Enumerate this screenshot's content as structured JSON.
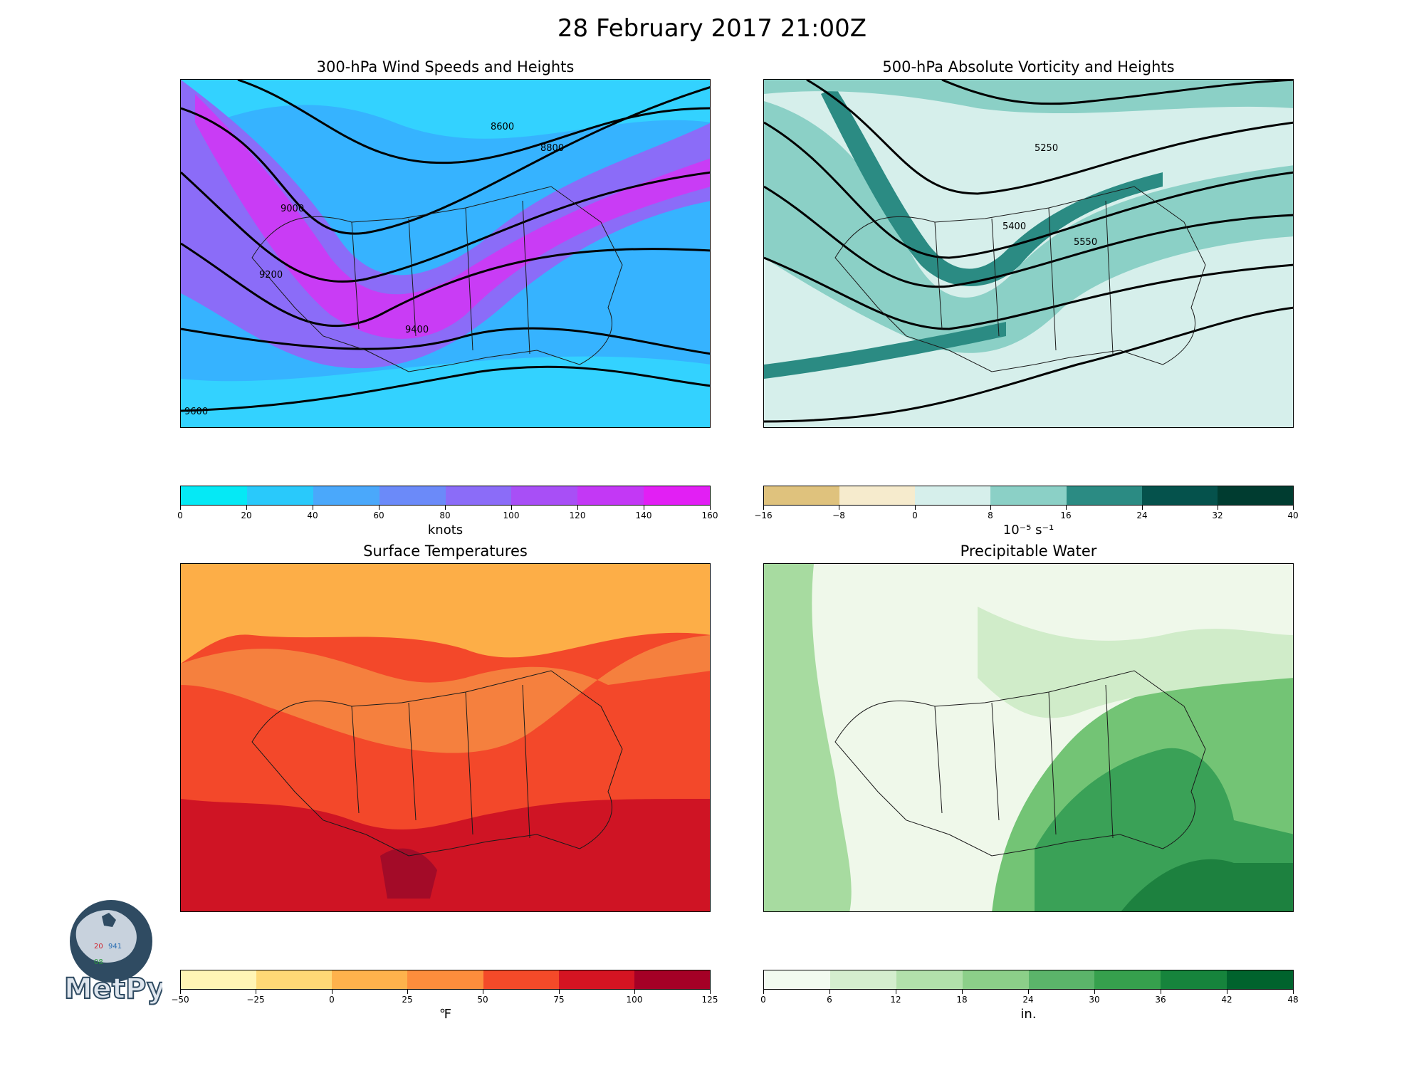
{
  "figure": {
    "title": "28 February 2017 21:00Z"
  },
  "panels": [
    {
      "id": "wind",
      "title": "300-hPa Wind Speeds and Heights",
      "map_colors": [
        "#36b3ff",
        "#8b6cf8",
        "#c93cf5",
        "#33d2ff"
      ],
      "contour_labels": [
        "8600",
        "8800",
        "9000",
        "9200",
        "9400",
        "9600"
      ],
      "colorbar": {
        "label": "knots",
        "ticks": [
          "0",
          "20",
          "40",
          "60",
          "80",
          "100",
          "120",
          "140",
          "160"
        ],
        "colors": [
          "#05e9f5",
          "#29c9fb",
          "#4aa8fb",
          "#6b8af9",
          "#8b6cf8",
          "#a84ff6",
          "#c338f5",
          "#e21ff4"
        ]
      }
    },
    {
      "id": "vort",
      "title": "500-hPa Absolute Vorticity and Heights",
      "map_colors": [
        "#d6efeb",
        "#8bd0c6",
        "#2b8b83",
        "#05524c"
      ],
      "contour_labels": [
        "5250",
        "5400",
        "5550"
      ],
      "colorbar": {
        "label": "10⁻⁵ s⁻¹",
        "ticks": [
          "−16",
          "−8",
          "0",
          "8",
          "16",
          "24",
          "32",
          "40"
        ],
        "colors": [
          "#dfc27d",
          "#f6ebcd",
          "#d6efeb",
          "#8bd0c6",
          "#2b8b83",
          "#05524c",
          "#003c30"
        ]
      }
    },
    {
      "id": "temp",
      "title": "Surface Temperatures",
      "map_colors": [
        "#fdae47",
        "#f5803e",
        "#f3482a",
        "#cf1424",
        "#a30b28"
      ],
      "contour_labels": [],
      "colorbar": {
        "label": "℉",
        "ticks": [
          "−50",
          "−25",
          "0",
          "25",
          "50",
          "75",
          "100",
          "125"
        ],
        "colors": [
          "#fff5b5",
          "#fed976",
          "#feb24c",
          "#fd8d3c",
          "#f44a29",
          "#d41422",
          "#a50026"
        ]
      }
    },
    {
      "id": "pw",
      "title": "Precipitable Water",
      "map_colors": [
        "#eff8ea",
        "#d0ecc9",
        "#a7dba0",
        "#73c475",
        "#3aa157",
        "#1d813f"
      ],
      "contour_labels": [],
      "colorbar": {
        "label": "in.",
        "ticks": [
          "0",
          "6",
          "12",
          "18",
          "24",
          "30",
          "36",
          "42",
          "48"
        ],
        "colors": [
          "#f2faf0",
          "#d4eece",
          "#b2e0ab",
          "#8ccf89",
          "#5bb46a",
          "#36a04d",
          "#16843c",
          "#00632d"
        ]
      }
    }
  ],
  "logo": {
    "text": "MetPy",
    "station_temp": "20",
    "station_pressure": "941",
    "station_dewpoint": "08"
  }
}
